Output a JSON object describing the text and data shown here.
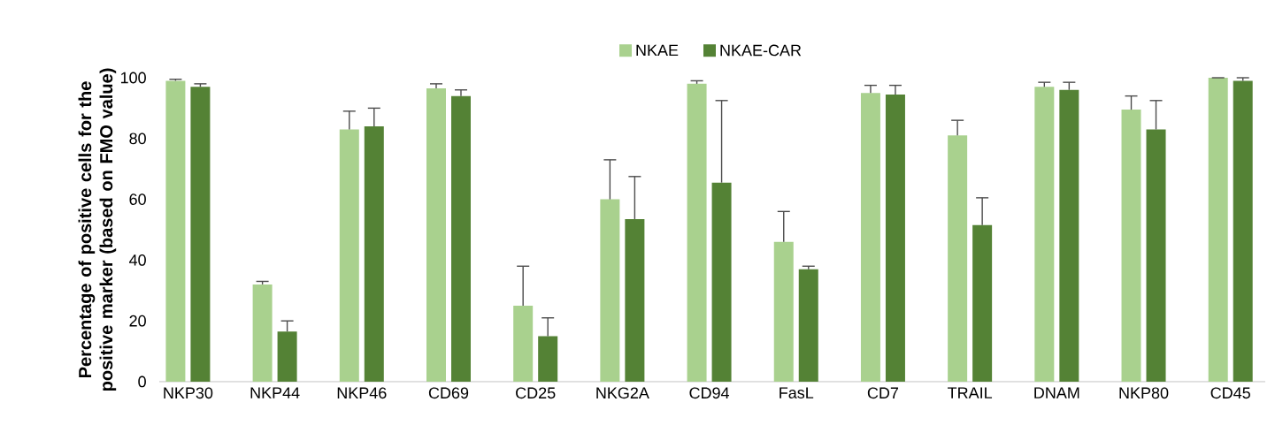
{
  "chart_data": {
    "type": "bar",
    "ylabel": "Percentage of positive cells for the positive marker (based on FMO value)",
    "categories": [
      "NKP30",
      "NKP44",
      "NKP46",
      "CD69",
      "CD25",
      "NKG2A",
      "CD94",
      "FasL",
      "CD7",
      "TRAIL",
      "DNAM",
      "NKP80",
      "CD45"
    ],
    "series": [
      {
        "name": "NKAE",
        "color": "#a9d18e",
        "values": [
          99,
          32,
          83,
          96.5,
          25,
          60,
          98,
          46,
          95,
          81,
          97,
          89.5,
          100
        ],
        "errors": [
          0.5,
          1,
          6,
          1.5,
          13,
          13,
          1,
          10,
          2.5,
          5,
          1.5,
          4.5,
          0
        ]
      },
      {
        "name": "NKAE-CAR",
        "color": "#548235",
        "values": [
          97,
          16.5,
          84,
          94,
          15,
          53.5,
          65.5,
          37,
          94.5,
          51.5,
          96,
          83,
          99
        ],
        "errors": [
          1,
          3.5,
          6,
          2,
          6,
          14,
          27,
          1,
          3,
          9,
          2.5,
          9.5,
          1
        ]
      }
    ],
    "ylim": [
      0,
      100
    ],
    "yticks": [
      0,
      20,
      40,
      60,
      80,
      100
    ],
    "legend": "top"
  }
}
